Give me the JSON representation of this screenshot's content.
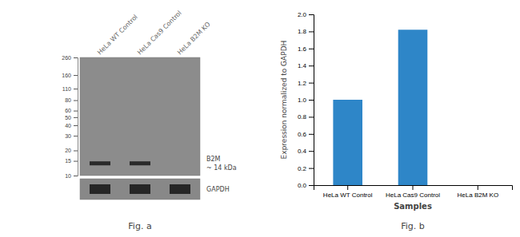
{
  "chart_data": [
    {
      "type": "blot",
      "title": "Fig. a",
      "categories": [
        "HeLa WT Control",
        "HeLa Cas9 Control",
        "HeLa B2M KO"
      ],
      "ylim": [
        10,
        260
      ],
      "yticks": [
        260,
        160,
        110,
        80,
        60,
        50,
        40,
        30,
        20,
        15,
        10
      ],
      "log": "y",
      "series": [
        {
          "name": "B2M",
          "color": "#1c1c1c",
          "values": [
            14,
            14,
            null
          ]
        }
      ],
      "annotations": [
        "~ 14 kDa",
        "GAPDH"
      ]
    },
    {
      "type": "bar",
      "title": "Fig. b",
      "categories": [
        "HeLa WT Control",
        "HeLa Cas9 Control",
        "HeLa B2M KO"
      ],
      "values": [
        1.0,
        1.82,
        0.0
      ],
      "color": "#2e86c8",
      "xlabel": "Samples",
      "ylabel": "Expression normalized to GAPDH",
      "ylim": [
        0,
        2
      ],
      "yticks": [
        {
          "value": 0,
          "label": "0.0"
        },
        0.2,
        0.4,
        0.6,
        0.8,
        {
          "value": 1.0,
          "label": "1.0"
        },
        1.2,
        1.4,
        1.6,
        1.8,
        {
          "value": 2.0,
          "label": "2.0"
        }
      ]
    }
  ]
}
